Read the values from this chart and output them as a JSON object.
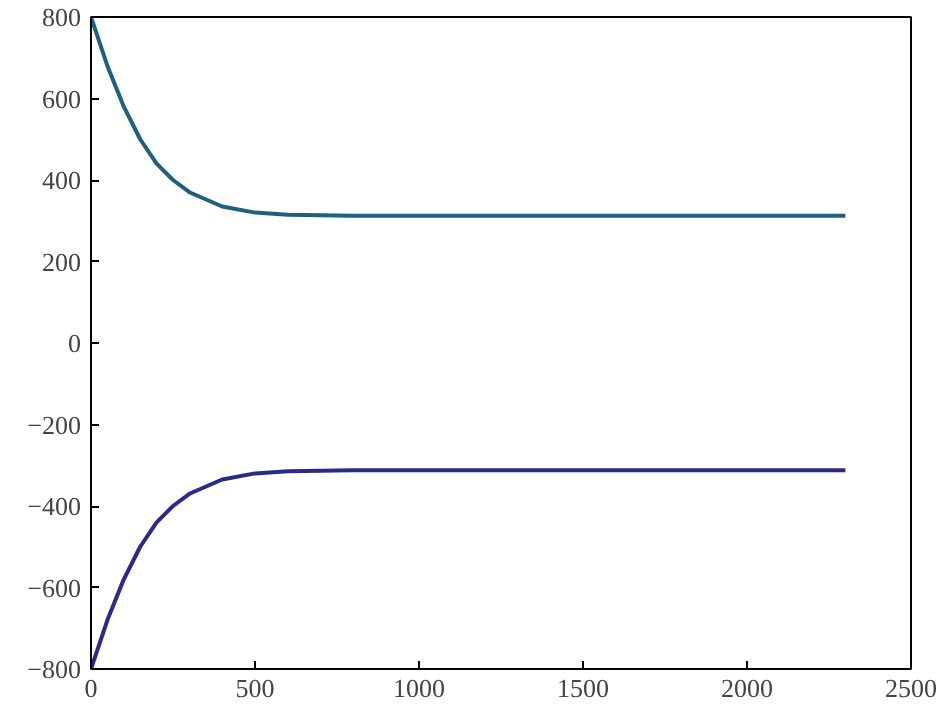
{
  "chart_data": {
    "type": "line",
    "x": [
      0,
      50,
      100,
      150,
      200,
      250,
      300,
      400,
      500,
      600,
      800,
      1000,
      1500,
      2000,
      2300
    ],
    "series": [
      {
        "color": "#1f5f80",
        "values": [
          800,
          680,
          580,
          500,
          440,
          400,
          370,
          335,
          320,
          315,
          312,
          312,
          312,
          312,
          312
        ]
      },
      {
        "color": "#2a2a8c",
        "values": [
          -800,
          -680,
          -580,
          -500,
          -440,
          -400,
          -370,
          -335,
          -320,
          -315,
          -312,
          -312,
          -312,
          -312,
          -312
        ]
      }
    ],
    "xlim": [
      0,
      2500
    ],
    "xticks": [
      0,
      500,
      1000,
      1500,
      2000,
      2500
    ],
    "ylim": [
      -800,
      800
    ],
    "yticks": [
      -800,
      -600,
      -400,
      -200,
      0,
      200,
      400,
      600,
      800
    ],
    "grid": false,
    "line_style": "solid"
  }
}
